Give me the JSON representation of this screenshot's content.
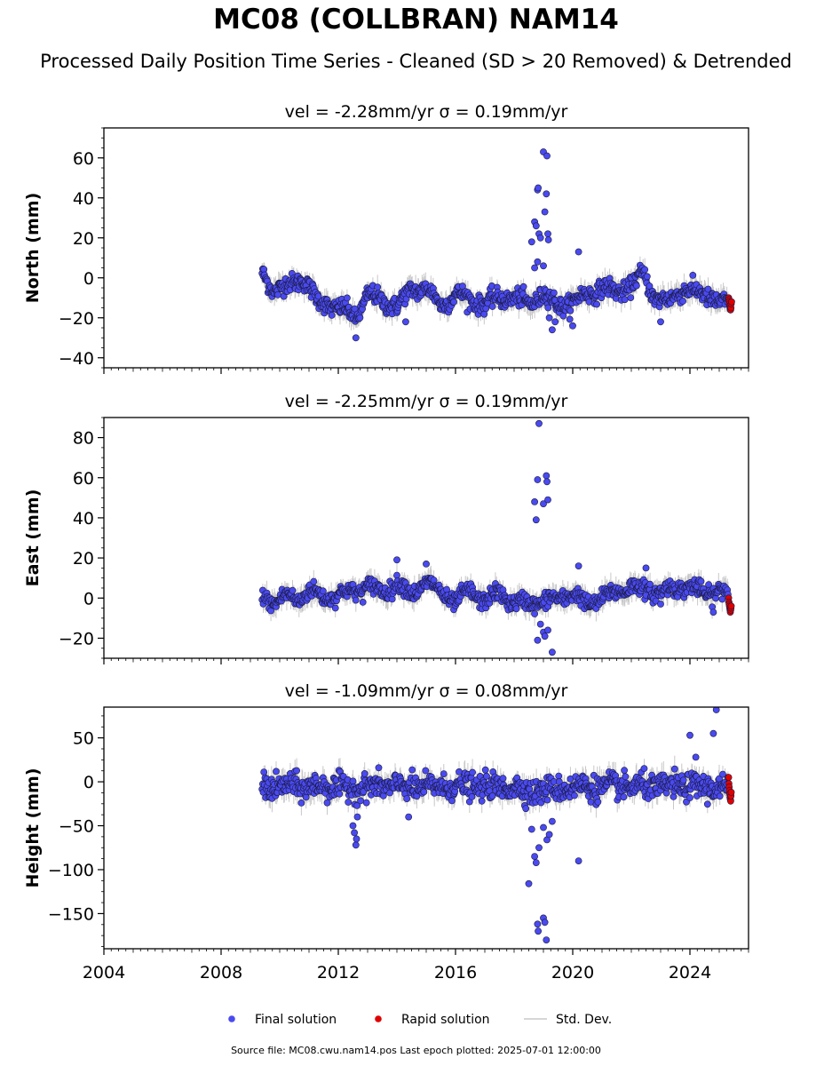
{
  "title": "MC08 (COLLBRAN) NAM14",
  "subtitle": "Processed Daily Position Time Series - Cleaned (SD > 20 Removed) & Detrended",
  "footer": "Source file: MC08.cwu.nam14.pos  Last epoch plotted: 2025-07-01 12:00:00",
  "colors": {
    "final": "#4a4af0",
    "rapid": "#e00000",
    "stddev": "#c8c8c8",
    "edge": "#1a1a40"
  },
  "legend": [
    {
      "key": "final",
      "label": "Final solution"
    },
    {
      "key": "rapid",
      "label": "Rapid solution"
    },
    {
      "key": "stddev",
      "label": "Std. Dev."
    }
  ],
  "chart_data": [
    {
      "type": "scatter",
      "panel": "north",
      "title": "vel = -2.28mm/yr   σ = 0.19mm/yr",
      "xlabel": "",
      "ylabel": "North (mm)",
      "xlim": [
        2004.0,
        2026.0
      ],
      "ylim": [
        -45,
        75
      ],
      "yticks": [
        -40,
        -20,
        0,
        20,
        40,
        60
      ],
      "ytick_labels": [
        "−40",
        "−20",
        "0",
        "20",
        "40",
        "60"
      ],
      "grid": false,
      "baseline": [
        [
          2009.4,
          2
        ],
        [
          2009.8,
          -6
        ],
        [
          2010.3,
          -4
        ],
        [
          2010.8,
          0
        ],
        [
          2011.3,
          -12
        ],
        [
          2011.8,
          -14
        ],
        [
          2012.2,
          -16
        ],
        [
          2012.6,
          -20
        ],
        [
          2013.0,
          -8
        ],
        [
          2013.5,
          -12
        ],
        [
          2014.0,
          -14
        ],
        [
          2014.5,
          -6
        ],
        [
          2015.0,
          -5
        ],
        [
          2015.5,
          -14
        ],
        [
          2016.0,
          -8
        ],
        [
          2016.5,
          -11
        ],
        [
          2017.0,
          -13
        ],
        [
          2017.5,
          -10
        ],
        [
          2018.0,
          -10
        ],
        [
          2018.5,
          -13
        ],
        [
          2019.0,
          -8
        ],
        [
          2019.5,
          -14
        ],
        [
          2020.0,
          -12
        ],
        [
          2020.5,
          -8
        ],
        [
          2021.0,
          -5
        ],
        [
          2021.5,
          -7
        ],
        [
          2022.0,
          -4
        ],
        [
          2022.4,
          2
        ],
        [
          2022.8,
          -10
        ],
        [
          2023.3,
          -12
        ],
        [
          2023.8,
          -5
        ],
        [
          2024.3,
          -8
        ],
        [
          2024.8,
          -10
        ],
        [
          2025.3,
          -14
        ]
      ],
      "outliers": [
        [
          2018.6,
          18
        ],
        [
          2018.7,
          28
        ],
        [
          2018.75,
          26
        ],
        [
          2018.8,
          44
        ],
        [
          2018.82,
          45
        ],
        [
          2018.85,
          22
        ],
        [
          2018.9,
          20
        ],
        [
          2019.0,
          63
        ],
        [
          2019.05,
          33
        ],
        [
          2019.1,
          42
        ],
        [
          2019.12,
          61
        ],
        [
          2019.15,
          22
        ],
        [
          2019.17,
          19
        ],
        [
          2018.7,
          5
        ],
        [
          2018.8,
          8
        ],
        [
          2019.0,
          6
        ],
        [
          2019.2,
          -20
        ],
        [
          2019.3,
          -26
        ],
        [
          2019.4,
          -22
        ],
        [
          2020.0,
          -24
        ],
        [
          2020.2,
          13
        ],
        [
          2012.6,
          -30
        ],
        [
          2014.3,
          -22
        ],
        [
          2023.0,
          -22
        ]
      ],
      "rapid": [
        [
          2025.32,
          -10
        ],
        [
          2025.33,
          -11
        ],
        [
          2025.34,
          -12
        ],
        [
          2025.35,
          -13
        ],
        [
          2025.36,
          -14
        ],
        [
          2025.37,
          -15
        ],
        [
          2025.38,
          -16
        ],
        [
          2025.39,
          -16
        ],
        [
          2025.4,
          -15
        ],
        [
          2025.41,
          -13
        ],
        [
          2025.42,
          -12
        ]
      ]
    },
    {
      "type": "scatter",
      "panel": "east",
      "title": "vel = -2.25mm/yr   σ = 0.19mm/yr",
      "xlabel": "",
      "ylabel": "East (mm)",
      "xlim": [
        2004.0,
        2026.0
      ],
      "ylim": [
        -30,
        90
      ],
      "yticks": [
        -20,
        0,
        20,
        40,
        60,
        80
      ],
      "ytick_labels": [
        "−20",
        "0",
        "20",
        "40",
        "60",
        "80"
      ],
      "grid": false,
      "baseline": [
        [
          2009.4,
          1
        ],
        [
          2009.8,
          -2
        ],
        [
          2010.2,
          1
        ],
        [
          2010.6,
          -1
        ],
        [
          2011.0,
          4
        ],
        [
          2011.5,
          0
        ],
        [
          2012.0,
          2
        ],
        [
          2012.5,
          3
        ],
        [
          2013.0,
          6
        ],
        [
          2013.5,
          3
        ],
        [
          2014.0,
          7
        ],
        [
          2014.5,
          2
        ],
        [
          2015.0,
          8
        ],
        [
          2015.5,
          3
        ],
        [
          2016.0,
          -2
        ],
        [
          2016.5,
          4
        ],
        [
          2017.0,
          -2
        ],
        [
          2017.5,
          3
        ],
        [
          2018.0,
          -3
        ],
        [
          2018.5,
          -2
        ],
        [
          2019.0,
          -2
        ],
        [
          2019.5,
          0
        ],
        [
          2020.0,
          2
        ],
        [
          2020.5,
          -3
        ],
        [
          2021.0,
          0
        ],
        [
          2021.5,
          3
        ],
        [
          2022.0,
          6
        ],
        [
          2022.5,
          4
        ],
        [
          2023.0,
          3
        ],
        [
          2023.5,
          5
        ],
        [
          2024.0,
          6
        ],
        [
          2024.5,
          2
        ],
        [
          2025.0,
          4
        ],
        [
          2025.3,
          2
        ]
      ],
      "outliers": [
        [
          2018.7,
          48
        ],
        [
          2018.75,
          39
        ],
        [
          2018.8,
          59
        ],
        [
          2018.85,
          87
        ],
        [
          2019.0,
          47
        ],
        [
          2019.1,
          61
        ],
        [
          2019.12,
          58
        ],
        [
          2019.15,
          49
        ],
        [
          2018.8,
          -21
        ],
        [
          2018.9,
          -13
        ],
        [
          2019.0,
          -17
        ],
        [
          2019.05,
          -19
        ],
        [
          2019.15,
          -16
        ],
        [
          2019.3,
          -27
        ],
        [
          2020.2,
          16
        ],
        [
          2014.0,
          19
        ],
        [
          2015.0,
          17
        ],
        [
          2022.5,
          15
        ],
        [
          2024.8,
          -7
        ],
        [
          2023.0,
          -3
        ]
      ],
      "rapid": [
        [
          2025.32,
          0
        ],
        [
          2025.33,
          -2
        ],
        [
          2025.34,
          -3
        ],
        [
          2025.35,
          -4
        ],
        [
          2025.36,
          -5
        ],
        [
          2025.37,
          -6
        ],
        [
          2025.38,
          -7
        ],
        [
          2025.39,
          -6
        ],
        [
          2025.4,
          -5
        ],
        [
          2025.41,
          -4
        ]
      ]
    },
    {
      "type": "scatter",
      "panel": "height",
      "title": "vel = -1.09mm/yr   σ = 0.08mm/yr",
      "xlabel": "",
      "ylabel": "Height (mm)",
      "xlim": [
        2004.0,
        2026.0
      ],
      "ylim": [
        -190,
        85
      ],
      "yticks": [
        -150,
        -100,
        -50,
        0,
        50
      ],
      "ytick_labels": [
        "−150",
        "−100",
        "−50",
        "0",
        "50"
      ],
      "xticks": [
        2004,
        2008,
        2012,
        2016,
        2020,
        2024
      ],
      "xtick_labels": [
        "2004",
        "2008",
        "2012",
        "2016",
        "2020",
        "2024"
      ],
      "grid": false,
      "baseline": [
        [
          2009.4,
          -5
        ],
        [
          2010.0,
          -6
        ],
        [
          2010.5,
          -4
        ],
        [
          2011.0,
          -7
        ],
        [
          2011.5,
          -5
        ],
        [
          2012.0,
          -6
        ],
        [
          2012.5,
          -8
        ],
        [
          2013.0,
          -5
        ],
        [
          2013.5,
          -6
        ],
        [
          2014.0,
          -4
        ],
        [
          2014.5,
          -7
        ],
        [
          2015.0,
          -5
        ],
        [
          2015.5,
          -6
        ],
        [
          2016.0,
          -4
        ],
        [
          2016.5,
          -6
        ],
        [
          2017.0,
          -5
        ],
        [
          2017.5,
          -7
        ],
        [
          2018.0,
          -5
        ],
        [
          2018.5,
          -12
        ],
        [
          2019.0,
          -10
        ],
        [
          2019.5,
          -8
        ],
        [
          2020.0,
          -6
        ],
        [
          2020.5,
          -5
        ],
        [
          2021.0,
          -7
        ],
        [
          2021.5,
          -4
        ],
        [
          2022.0,
          -6
        ],
        [
          2022.5,
          -5
        ],
        [
          2023.0,
          -6
        ],
        [
          2023.5,
          -4
        ],
        [
          2024.0,
          -5
        ],
        [
          2024.5,
          -6
        ],
        [
          2025.0,
          -7
        ],
        [
          2025.3,
          -8
        ]
      ],
      "outliers": [
        [
          2012.5,
          -50
        ],
        [
          2012.55,
          -58
        ],
        [
          2012.6,
          -72
        ],
        [
          2012.62,
          -65
        ],
        [
          2012.65,
          -40
        ],
        [
          2014.4,
          -40
        ],
        [
          2018.5,
          -116
        ],
        [
          2018.6,
          -54
        ],
        [
          2018.7,
          -85
        ],
        [
          2018.75,
          -92
        ],
        [
          2018.8,
          -162
        ],
        [
          2018.82,
          -170
        ],
        [
          2018.85,
          -75
        ],
        [
          2019.0,
          -155
        ],
        [
          2019.05,
          -160
        ],
        [
          2019.1,
          -180
        ],
        [
          2019.12,
          -66
        ],
        [
          2019.2,
          -60
        ],
        [
          2019.3,
          -45
        ],
        [
          2019.0,
          -52
        ],
        [
          2020.2,
          -90
        ],
        [
          2024.0,
          53
        ],
        [
          2024.2,
          28
        ],
        [
          2024.8,
          55
        ],
        [
          2024.9,
          82
        ]
      ],
      "rapid": [
        [
          2025.32,
          5
        ],
        [
          2025.33,
          -2
        ],
        [
          2025.34,
          -6
        ],
        [
          2025.35,
          -10
        ],
        [
          2025.36,
          -14
        ],
        [
          2025.37,
          -18
        ],
        [
          2025.38,
          -20
        ],
        [
          2025.39,
          -22
        ],
        [
          2025.4,
          -16
        ],
        [
          2025.41,
          -12
        ]
      ]
    }
  ]
}
